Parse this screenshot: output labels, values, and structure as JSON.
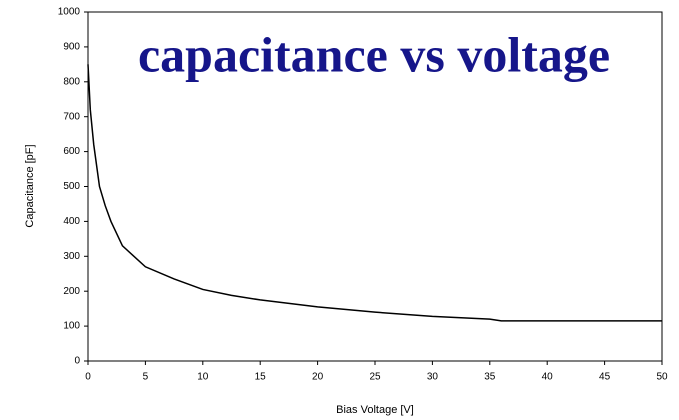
{
  "chart_data": {
    "type": "line",
    "title": "capacitance vs voltage",
    "x_label": "Bias Voltage [V]",
    "y_label": "Capacitance [pF]",
    "x": [
      0,
      0.2,
      0.5,
      1,
      1.5,
      2,
      3,
      4,
      5,
      7.5,
      10,
      12.5,
      15,
      20,
      25,
      30,
      35,
      36,
      40,
      45,
      50
    ],
    "series": [
      {
        "name": "Capacitance",
        "color": "#000000",
        "values": [
          850,
          720,
          620,
          500,
          445,
          400,
          330,
          300,
          270,
          235,
          205,
          188,
          175,
          155,
          140,
          128,
          120,
          115,
          115,
          115,
          115
        ]
      }
    ],
    "xlim": [
      0,
      50
    ],
    "xticks": [
      0,
      5,
      10,
      15,
      20,
      25,
      30,
      35,
      40,
      45,
      50
    ],
    "ylim": [
      0,
      1000
    ],
    "yticks": [
      0,
      100,
      200,
      300,
      400,
      500,
      600,
      700,
      800,
      900,
      1000
    ],
    "grid": false
  }
}
